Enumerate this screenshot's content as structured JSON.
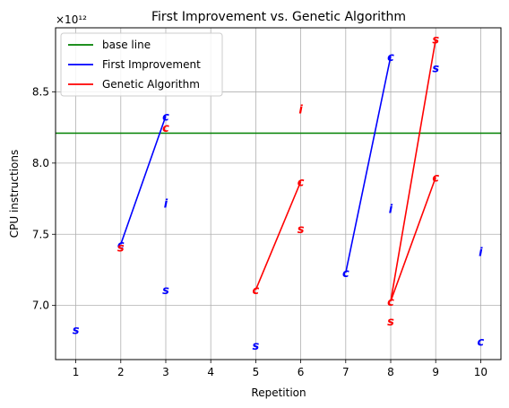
{
  "chart_data": {
    "type": "line",
    "title": "First Improvement vs. Genetic Algorithm",
    "xlabel": "Repetition",
    "ylabel": "CPU instructions",
    "y_offset_label": "×10¹²",
    "xlim": [
      0.55,
      10.45
    ],
    "ylim": [
      6.62,
      8.95
    ],
    "x_ticks": [
      1,
      2,
      3,
      4,
      5,
      6,
      7,
      8,
      9,
      10
    ],
    "y_ticks": [
      7.0,
      7.5,
      8.0,
      8.5
    ],
    "y_tick_labels": [
      "7.0",
      "7.5",
      "8.0",
      "8.5"
    ],
    "grid": true,
    "legend_position": "top-left",
    "colors": {
      "base": "#008000",
      "first": "#0000ff",
      "genetic": "#ff0000"
    },
    "baseline": {
      "name": "base line",
      "y": 8.21
    },
    "series": [
      {
        "name": "First Improvement",
        "color": "#0000ff",
        "lines": [
          [
            [
              2,
              7.43
            ],
            [
              3,
              8.33
            ]
          ],
          [
            [
              7,
              7.23
            ],
            [
              8,
              8.75
            ]
          ]
        ],
        "markers": [
          {
            "x": 1,
            "y": 6.83,
            "t": "s"
          },
          {
            "x": 2,
            "y": 7.43,
            "t": "c"
          },
          {
            "x": 3,
            "y": 8.33,
            "t": "c"
          },
          {
            "x": 3,
            "y": 7.72,
            "t": "i"
          },
          {
            "x": 3,
            "y": 7.11,
            "t": "s"
          },
          {
            "x": 5,
            "y": 6.72,
            "t": "s"
          },
          {
            "x": 7,
            "y": 7.23,
            "t": "c"
          },
          {
            "x": 8,
            "y": 8.75,
            "t": "c"
          },
          {
            "x": 8,
            "y": 7.68,
            "t": "i"
          },
          {
            "x": 9,
            "y": 8.67,
            "t": "s"
          },
          {
            "x": 10,
            "y": 7.38,
            "t": "i"
          },
          {
            "x": 10,
            "y": 6.75,
            "t": "c"
          }
        ]
      },
      {
        "name": "Genetic Algorithm",
        "color": "#ff0000",
        "lines": [
          [
            [
              5,
              7.11
            ],
            [
              6,
              7.87
            ]
          ],
          [
            [
              8,
              7.03
            ],
            [
              9,
              8.87
            ]
          ],
          [
            [
              8,
              7.03
            ],
            [
              9,
              7.9
            ]
          ]
        ],
        "markers": [
          {
            "x": 2,
            "y": 7.41,
            "t": "s"
          },
          {
            "x": 3,
            "y": 8.25,
            "t": "c"
          },
          {
            "x": 5,
            "y": 7.11,
            "t": "c"
          },
          {
            "x": 6,
            "y": 7.87,
            "t": "c"
          },
          {
            "x": 6,
            "y": 8.38,
            "t": "i"
          },
          {
            "x": 6,
            "y": 7.54,
            "t": "s"
          },
          {
            "x": 8,
            "y": 7.03,
            "t": "c"
          },
          {
            "x": 8,
            "y": 6.89,
            "t": "s"
          },
          {
            "x": 9,
            "y": 8.87,
            "t": "s"
          },
          {
            "x": 9,
            "y": 7.9,
            "t": "c"
          }
        ]
      }
    ]
  }
}
